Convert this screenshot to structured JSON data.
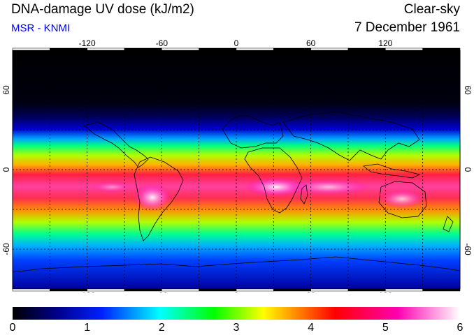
{
  "header": {
    "title": "DNA-damage UV dose (kJ/m2)",
    "subtitle": "MSR - KNMI",
    "sky_condition": "Clear-sky",
    "date": "7 December 1961"
  },
  "map": {
    "lon_ticks": [
      -120,
      -60,
      0,
      60,
      120
    ],
    "lat_ticks": [
      60,
      0,
      -60
    ],
    "lon_range": [
      -180,
      180
    ],
    "lat_range": [
      90,
      -90
    ],
    "coastline_color": "#000000",
    "grid_style": "dotted"
  },
  "colorbar": {
    "ticks": [
      0,
      1,
      2,
      3,
      4,
      5,
      6
    ],
    "range": [
      0,
      6
    ],
    "colors": [
      "#000000",
      "#00008b",
      "#0000ff",
      "#00ffff",
      "#00ff00",
      "#ffff00",
      "#ff8000",
      "#ff0000",
      "#ff00c0",
      "#ffffff"
    ]
  }
}
